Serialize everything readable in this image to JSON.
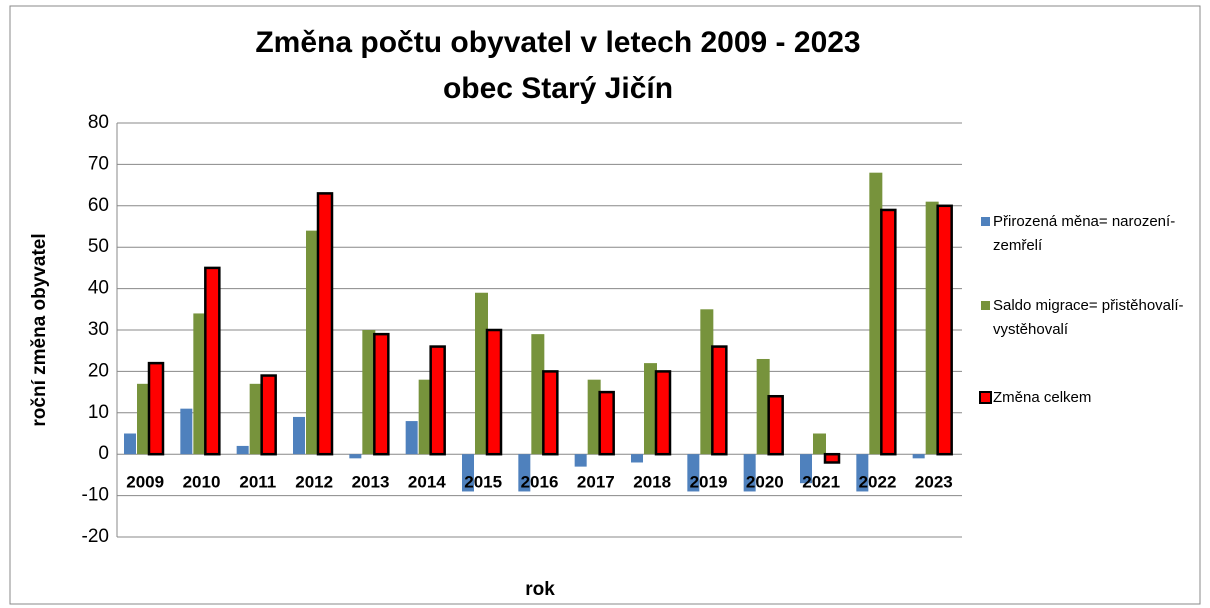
{
  "chart_data": {
    "type": "bar",
    "title": "Změna počtu obyvatel v letech 2009 - 2023",
    "subtitle": "obec Starý Jičín",
    "x_label": "rok",
    "y_label": "roční změna obyvatel",
    "categories": [
      "2009",
      "2010",
      "2011",
      "2012",
      "2013",
      "2014",
      "2015",
      "2016",
      "2017",
      "2018",
      "2019",
      "2020",
      "2021",
      "2022",
      "2023"
    ],
    "series": [
      {
        "name": "Přirozená měna= narození-zemřelí",
        "color": "#4f81bd",
        "values": [
          5,
          11,
          2,
          9,
          -1,
          8,
          -9,
          -9,
          -3,
          -2,
          -9,
          -9,
          -7,
          -9,
          -1
        ]
      },
      {
        "name": "Saldo migrace= přistěhovalí-vystěhovalí",
        "color": "#77933c",
        "values": [
          17,
          34,
          17,
          54,
          30,
          18,
          39,
          29,
          18,
          22,
          35,
          23,
          5,
          68,
          61
        ]
      },
      {
        "name": "Změna celkem",
        "color": "#ff0000",
        "values": [
          22,
          45,
          19,
          63,
          29,
          26,
          30,
          20,
          15,
          20,
          26,
          14,
          -2,
          59,
          60
        ]
      }
    ],
    "ylim": [
      -20,
      80
    ],
    "yticks": [
      -20,
      -10,
      0,
      10,
      20,
      30,
      40,
      50,
      60,
      70,
      80
    ],
    "grid": true,
    "legend": "right"
  }
}
